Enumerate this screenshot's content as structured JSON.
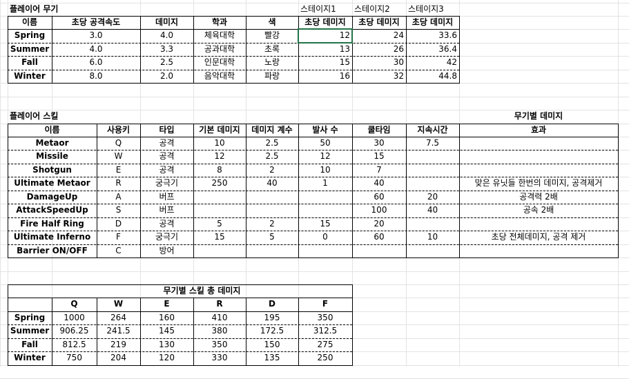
{
  "weapons": {
    "title": "플레이어 무기",
    "stage_headers": [
      "스테이지1",
      "스테이지2",
      "스테이지3"
    ],
    "columns": [
      "이름",
      "초당 공격속도",
      "데미지",
      "학과",
      "색",
      "초당 데미지",
      "초당 데미지",
      "초당 데미지"
    ],
    "rows": [
      {
        "name": "Spring",
        "speed": "3.0",
        "damage": "4.0",
        "dept": "체육대학",
        "color": "빨강",
        "s1": "12",
        "s2": "24",
        "s3": "33.6"
      },
      {
        "name": "Summer",
        "speed": "4.0",
        "damage": "3.3",
        "dept": "공과대학",
        "color": "초록",
        "s1": "13",
        "s2": "26",
        "s3": "36.4"
      },
      {
        "name": "Fall",
        "speed": "6.0",
        "damage": "2.5",
        "dept": "인문대학",
        "color": "노랑",
        "s1": "15",
        "s2": "30",
        "s3": "42"
      },
      {
        "name": "Winter",
        "speed": "8.0",
        "damage": "2.0",
        "dept": "음악대학",
        "color": "파랑",
        "s1": "16",
        "s2": "32",
        "s3": "44.8"
      }
    ]
  },
  "skills": {
    "title": "플레이어 스킬",
    "side_title": "무기별 데미지",
    "columns": [
      "이름",
      "사용키",
      "타입",
      "기본 데미지",
      "데미지 계수",
      "발사 수",
      "쿨타임",
      "지속시간",
      "효과"
    ],
    "rows": [
      {
        "name": "Metaor",
        "key": "Q",
        "type": "공격",
        "base": "10",
        "coef": "2.5",
        "shots": "50",
        "cool": "30",
        "dur": "7.5",
        "effect": ""
      },
      {
        "name": "Missile",
        "key": "W",
        "type": "공격",
        "base": "12",
        "coef": "2.5",
        "shots": "12",
        "cool": "15",
        "dur": "",
        "effect": ""
      },
      {
        "name": "Shotgun",
        "key": "E",
        "type": "공격",
        "base": "8",
        "coef": "2",
        "shots": "10",
        "cool": "7",
        "dur": "",
        "effect": ""
      },
      {
        "name": "Ultimate Metaor",
        "key": "R",
        "type": "궁극기",
        "base": "250",
        "coef": "40",
        "shots": "1",
        "cool": "40",
        "dur": "",
        "effect": "맞은 유닛들 한번의 데미지, 공격제거"
      },
      {
        "name": "DamageUp",
        "key": "A",
        "type": "버프",
        "base": "",
        "coef": "",
        "shots": "",
        "cool": "60",
        "dur": "20",
        "effect": "공격력 2배"
      },
      {
        "name": "AttackSpeedUp",
        "key": "S",
        "type": "버프",
        "base": "",
        "coef": "",
        "shots": "",
        "cool": "100",
        "dur": "40",
        "effect": "공속 2배"
      },
      {
        "name": "Fire Half Ring",
        "key": "D",
        "type": "공격",
        "base": "5",
        "coef": "2",
        "shots": "15",
        "cool": "20",
        "dur": "",
        "effect": ""
      },
      {
        "name": "Ultimate Inferno",
        "key": "F",
        "type": "궁극기",
        "base": "15",
        "coef": "5",
        "shots": "0",
        "cool": "60",
        "dur": "10",
        "effect": "초당 전체데미지, 공격 제거"
      },
      {
        "name": "Barrier ON/OFF",
        "key": "C",
        "type": "방어",
        "base": "",
        "coef": "",
        "shots": "",
        "cool": "",
        "dur": "",
        "effect": ""
      }
    ]
  },
  "totals": {
    "title": "무기별 스킬 총 데미지",
    "columns": [
      "Q",
      "W",
      "E",
      "R",
      "D",
      "F"
    ],
    "rows": [
      {
        "name": "Spring",
        "vals": [
          "1000",
          "264",
          "160",
          "410",
          "195",
          "350"
        ]
      },
      {
        "name": "Summer",
        "vals": [
          "906.25",
          "241.5",
          "145",
          "380",
          "172.5",
          "312.5"
        ]
      },
      {
        "name": "Fall",
        "vals": [
          "812.5",
          "219",
          "130",
          "350",
          "150",
          "275"
        ]
      },
      {
        "name": "Winter",
        "vals": [
          "750",
          "204",
          "120",
          "330",
          "135",
          "250"
        ]
      }
    ]
  },
  "selection_color": "#217346"
}
